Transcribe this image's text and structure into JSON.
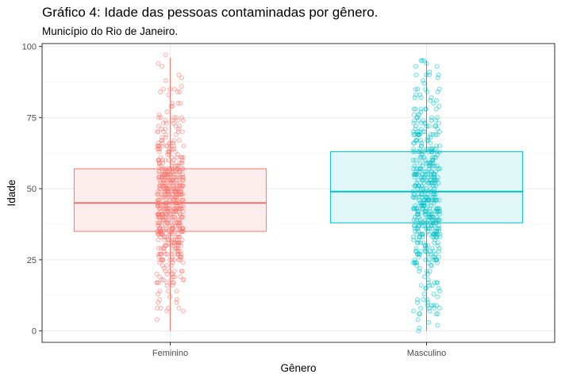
{
  "chart_data": {
    "type": "boxplot",
    "title": "Gráfico 4: Idade das pessoas contaminadas por gênero.",
    "subtitle": "Município do Rio de Janeiro.",
    "xlabel": "Gênero",
    "ylabel": "Idade",
    "ylim": [
      -4,
      101
    ],
    "yticks": [
      0,
      25,
      50,
      75,
      100
    ],
    "grid": true,
    "categories": [
      "Feminino",
      "Masculino"
    ],
    "series": [
      {
        "category": "Feminino",
        "color": "#F8766D",
        "fill": "#FDEDEC",
        "whisker_low": 0,
        "q1": 35,
        "median": 45,
        "q3": 57,
        "whisker_high": 96,
        "point_min": 0,
        "point_max": 97,
        "n_points": 520
      },
      {
        "category": "Masculino",
        "color": "#00BFC4",
        "fill": "#E0F6F7",
        "whisker_low": 0,
        "q1": 38,
        "median": 49,
        "q3": 63,
        "whisker_high": 95,
        "point_min": 0,
        "point_max": 95,
        "n_points": 470
      }
    ]
  }
}
